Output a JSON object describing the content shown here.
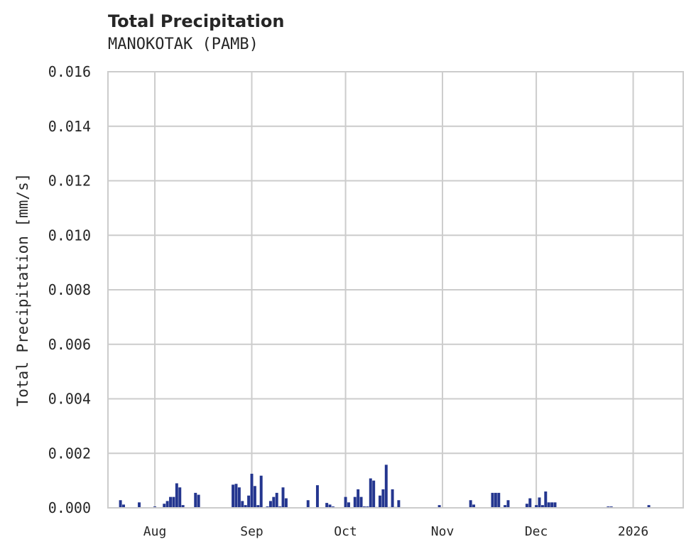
{
  "chart_data": {
    "type": "bar",
    "title": "Total Precipitation",
    "subtitle": "MANOKOTAK (PAMB)",
    "xlabel": "",
    "ylabel": "Total Precipitation [mm/s]",
    "ylim": [
      0,
      0.016
    ],
    "yticks": [
      "0.000",
      "0.002",
      "0.004",
      "0.006",
      "0.008",
      "0.010",
      "0.012",
      "0.014",
      "0.016"
    ],
    "xticks": [
      "Aug",
      "Sep",
      "Oct",
      "Nov",
      "Dec",
      "2026"
    ],
    "grid": true,
    "legend": null,
    "bar_color": "#24368f",
    "x_range": [
      "2025-07-17",
      "2026-01-17"
    ],
    "series": [
      {
        "name": "Total Precipitation",
        "points": [
          {
            "date": "2025-07-21",
            "value": 0.00028
          },
          {
            "date": "2025-07-22",
            "value": 0.00012
          },
          {
            "date": "2025-07-27",
            "value": 0.0002
          },
          {
            "date": "2025-08-01",
            "value": 5e-05
          },
          {
            "date": "2025-08-04",
            "value": 0.00015
          },
          {
            "date": "2025-08-05",
            "value": 0.00025
          },
          {
            "date": "2025-08-06",
            "value": 0.0004
          },
          {
            "date": "2025-08-07",
            "value": 0.0004
          },
          {
            "date": "2025-08-08",
            "value": 0.0009
          },
          {
            "date": "2025-08-09",
            "value": 0.00075
          },
          {
            "date": "2025-08-10",
            "value": 0.0001
          },
          {
            "date": "2025-08-14",
            "value": 0.00055
          },
          {
            "date": "2025-08-15",
            "value": 0.00048
          },
          {
            "date": "2025-08-26",
            "value": 0.00085
          },
          {
            "date": "2025-08-27",
            "value": 0.00088
          },
          {
            "date": "2025-08-28",
            "value": 0.00075
          },
          {
            "date": "2025-08-29",
            "value": 0.00025
          },
          {
            "date": "2025-08-30",
            "value": 0.0001
          },
          {
            "date": "2025-08-31",
            "value": 0.00045
          },
          {
            "date": "2025-09-01",
            "value": 0.00125
          },
          {
            "date": "2025-09-02",
            "value": 0.0008
          },
          {
            "date": "2025-09-03",
            "value": 0.0001
          },
          {
            "date": "2025-09-04",
            "value": 0.00118
          },
          {
            "date": "2025-09-06",
            "value": 5e-05
          },
          {
            "date": "2025-09-07",
            "value": 0.00025
          },
          {
            "date": "2025-09-08",
            "value": 0.0004
          },
          {
            "date": "2025-09-09",
            "value": 0.00055
          },
          {
            "date": "2025-09-10",
            "value": 5e-05
          },
          {
            "date": "2025-09-11",
            "value": 0.00075
          },
          {
            "date": "2025-09-12",
            "value": 0.00035
          },
          {
            "date": "2025-09-19",
            "value": 0.00028
          },
          {
            "date": "2025-09-22",
            "value": 0.00083
          },
          {
            "date": "2025-09-25",
            "value": 0.00018
          },
          {
            "date": "2025-09-26",
            "value": 0.00012
          },
          {
            "date": "2025-09-27",
            "value": 5e-05
          },
          {
            "date": "2025-10-01",
            "value": 0.0004
          },
          {
            "date": "2025-10-02",
            "value": 0.0002
          },
          {
            "date": "2025-10-04",
            "value": 0.0004
          },
          {
            "date": "2025-10-05",
            "value": 0.00068
          },
          {
            "date": "2025-10-06",
            "value": 0.0004
          },
          {
            "date": "2025-10-07",
            "value": 5e-05
          },
          {
            "date": "2025-10-08",
            "value": 5e-05
          },
          {
            "date": "2025-10-09",
            "value": 0.00108
          },
          {
            "date": "2025-10-10",
            "value": 0.001
          },
          {
            "date": "2025-10-11",
            "value": 3e-05
          },
          {
            "date": "2025-10-12",
            "value": 0.00045
          },
          {
            "date": "2025-10-13",
            "value": 0.00068
          },
          {
            "date": "2025-10-14",
            "value": 0.00158
          },
          {
            "date": "2025-10-15",
            "value": 3e-05
          },
          {
            "date": "2025-10-16",
            "value": 0.00068
          },
          {
            "date": "2025-10-17",
            "value": 3e-05
          },
          {
            "date": "2025-10-18",
            "value": 0.00028
          },
          {
            "date": "2025-10-31",
            "value": 0.0001
          },
          {
            "date": "2025-11-10",
            "value": 0.00028
          },
          {
            "date": "2025-11-11",
            "value": 0.00012
          },
          {
            "date": "2025-11-17",
            "value": 0.00055
          },
          {
            "date": "2025-11-18",
            "value": 0.00055
          },
          {
            "date": "2025-11-19",
            "value": 0.00055
          },
          {
            "date": "2025-11-21",
            "value": 0.0001
          },
          {
            "date": "2025-11-22",
            "value": 0.00028
          },
          {
            "date": "2025-11-28",
            "value": 0.00015
          },
          {
            "date": "2025-11-29",
            "value": 0.00035
          },
          {
            "date": "2025-12-01",
            "value": 0.0001
          },
          {
            "date": "2025-12-02",
            "value": 0.00038
          },
          {
            "date": "2025-12-03",
            "value": 0.0001
          },
          {
            "date": "2025-12-04",
            "value": 0.0006
          },
          {
            "date": "2025-12-05",
            "value": 0.0002
          },
          {
            "date": "2025-12-06",
            "value": 0.0002
          },
          {
            "date": "2025-12-07",
            "value": 0.0002
          },
          {
            "date": "2025-12-24",
            "value": 5e-05
          },
          {
            "date": "2025-12-25",
            "value": 5e-05
          },
          {
            "date": "2026-01-06",
            "value": 0.0001
          }
        ]
      }
    ]
  }
}
